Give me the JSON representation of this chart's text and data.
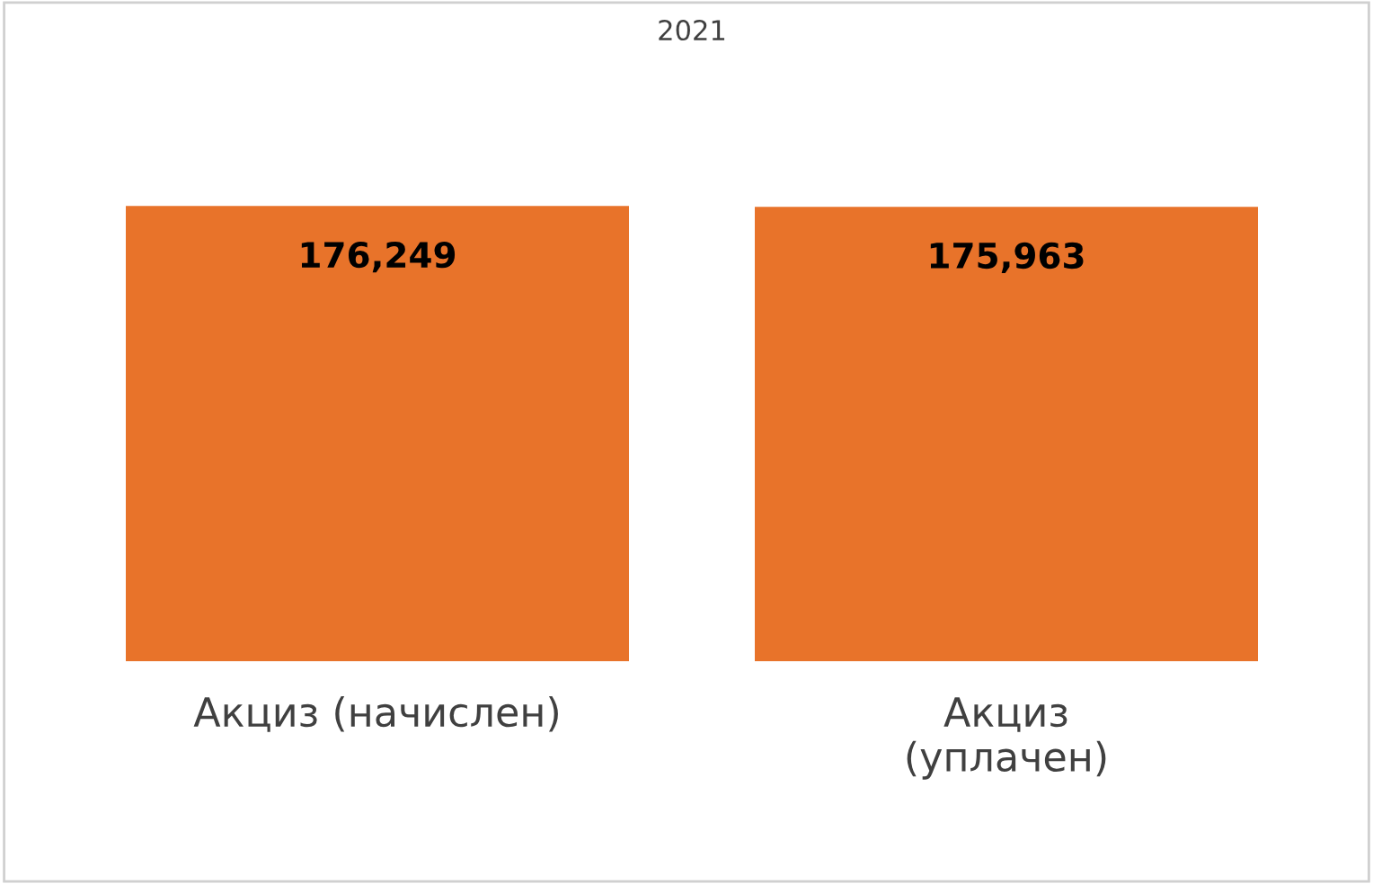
{
  "chart_data": {
    "type": "bar",
    "title": "2021",
    "categories": [
      "Акциз (начислен)",
      "Акциз\n(уплачен)"
    ],
    "values": [
      176249,
      175963
    ],
    "value_labels": [
      "176,249",
      "175,963"
    ],
    "color": "#e8732a",
    "tick_labels": "x",
    "grid": false,
    "legend": false
  }
}
